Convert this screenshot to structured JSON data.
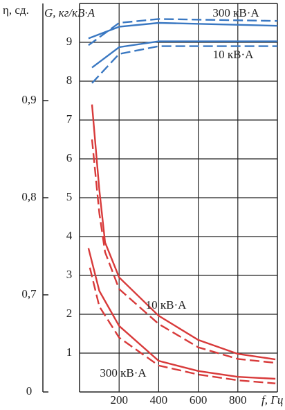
{
  "chart_data": {
    "type": "line",
    "y_label": "G, кг/кВ·А",
    "y2_label": "η, сд.",
    "x_label": "f, Гц",
    "xlim": [
      0,
      1000
    ],
    "xticks": [
      200,
      400,
      600,
      800
    ],
    "ylim": [
      0,
      10
    ],
    "yticks": [
      1,
      2,
      3,
      4,
      5,
      6,
      7,
      8,
      9
    ],
    "y2lim": [
      0.6,
      1.0
    ],
    "y2_axis_break": true,
    "y2ticks": [
      0,
      {
        "value": 0.7,
        "label": "0,7"
      },
      {
        "value": 0.8,
        "label": "0,8"
      },
      {
        "value": 0.9,
        "label": "0,9"
      }
    ],
    "grid": true,
    "series": [
      {
        "color": "#3a78c2",
        "dashed": false,
        "axis": "y2",
        "x": [
          45,
          200,
          400,
          1000
        ],
        "values": [
          0.964,
          0.976,
          0.98,
          0.977
        ]
      },
      {
        "color": "#3a78c2",
        "dashed": true,
        "axis": "y2",
        "x": [
          45,
          200,
          400,
          1000
        ],
        "values": [
          0.957,
          0.98,
          0.984,
          0.982
        ]
      },
      {
        "color": "#3a78c2",
        "dashed": false,
        "axis": "y2",
        "x": [
          63,
          200,
          400,
          1000
        ],
        "values": [
          0.934,
          0.955,
          0.961,
          0.961
        ]
      },
      {
        "color": "#3a78c2",
        "dashed": true,
        "axis": "y2",
        "x": [
          63,
          200,
          400,
          1000
        ],
        "values": [
          0.918,
          0.948,
          0.956,
          0.956
        ]
      },
      {
        "color": "#d83a3a",
        "dashed": false,
        "x": [
          63,
          100,
          129,
          200,
          400,
          600,
          800,
          990
        ],
        "values": [
          7.4,
          5.2,
          3.85,
          2.95,
          1.96,
          1.34,
          0.98,
          0.84
        ]
      },
      {
        "color": "#d83a3a",
        "dashed": true,
        "x": [
          63,
          100,
          129,
          200,
          400,
          600,
          800,
          990
        ],
        "values": [
          6.5,
          4.6,
          3.6,
          2.65,
          1.75,
          1.15,
          0.85,
          0.75
        ]
      },
      {
        "color": "#d83a3a",
        "dashed": false,
        "x": [
          45,
          100,
          200,
          400,
          600,
          800,
          990
        ],
        "values": [
          3.7,
          2.6,
          1.7,
          0.8,
          0.54,
          0.39,
          0.34
        ]
      },
      {
        "color": "#d83a3a",
        "dashed": true,
        "x": [
          52,
          100,
          200,
          400,
          600,
          800,
          990
        ],
        "values": [
          3.2,
          2.2,
          1.4,
          0.68,
          0.45,
          0.3,
          0.22
        ]
      }
    ],
    "annotations": [
      "300 кВ·А",
      "10 кВ·А",
      "10 кВ·А",
      "300 кВ·А"
    ]
  }
}
